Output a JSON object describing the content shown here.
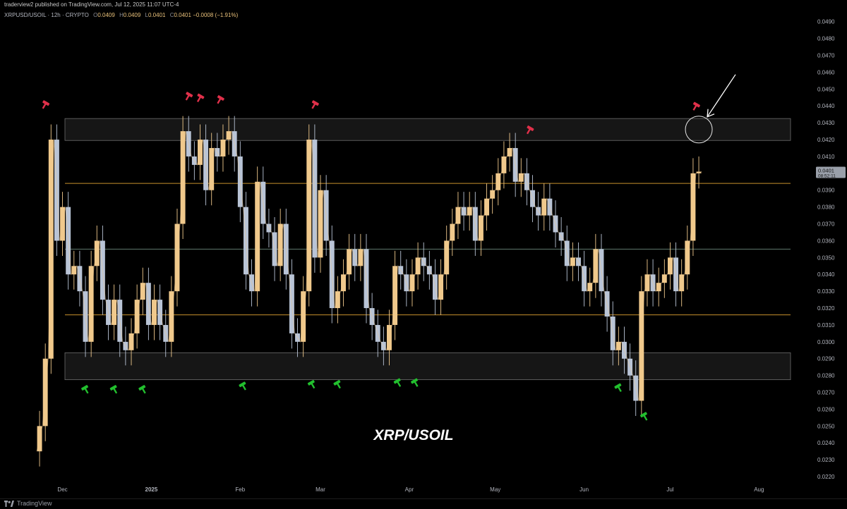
{
  "header": {
    "publisher": "traderview2 published on TradingView.com, Jul 12, 2025 11:07 UTC-4",
    "symbol": "XRPUSD/USOIL · 12h · CRYPTO",
    "ohlc": [
      {
        "k": "O",
        "v": "0.0409"
      },
      {
        "k": "H",
        "v": "0.0409"
      },
      {
        "k": "L",
        "v": "0.0401"
      },
      {
        "k": "C",
        "v": "0.0401"
      }
    ],
    "change": "−0.0008 (−1.91%)"
  },
  "footer": {
    "brand": "TradingView"
  },
  "colors": {
    "background": "#000000",
    "candle_up": "#f0c98c",
    "candle_down": "#b9c4d6",
    "level_line": "#c7902c",
    "mid_line": "#5f7a6e",
    "zone_fill": "#161616",
    "zone_border": "#6c6c6c",
    "sell_marker": "#e0304a",
    "buy_marker": "#22c02e",
    "price_tag": "#9aa0aa"
  },
  "chart_data": {
    "type": "line",
    "title": "XRP/USOIL",
    "xlabel": "",
    "ylabel": "",
    "x_ticks": [
      "Dec",
      "2025",
      "Feb",
      "Mar",
      "Apr",
      "May",
      "Jun",
      "Jul",
      "Aug"
    ],
    "y_ticks": [
      "0.0490",
      "0.0480",
      "0.0470",
      "0.0460",
      "0.0450",
      "0.0440",
      "0.0430",
      "0.0420",
      "0.0410",
      "0.0400",
      "0.0390",
      "0.0380",
      "0.0370",
      "0.0360",
      "0.0350",
      "0.0340",
      "0.0330",
      "0.0320",
      "0.0310",
      "0.0300",
      "0.0290",
      "0.0280",
      "0.0270",
      "0.0260",
      "0.0250",
      "0.0240",
      "0.0230",
      "0.0220"
    ],
    "ylim": [
      0.0215,
      0.0497
    ],
    "xlim": [
      "2024-11-22",
      "2025-08-12"
    ],
    "grid": false,
    "last_price": {
      "value": "0.0401",
      "countdown": "08:52:11"
    },
    "series": [
      {
        "x": [
          "2024-11-22",
          "2024-11-24",
          "2024-11-26",
          "2024-11-28",
          "2024-11-30",
          "2024-12-02",
          "2024-12-04",
          "2024-12-06",
          "2024-12-08",
          "2024-12-10",
          "2024-12-12",
          "2024-12-14",
          "2024-12-16",
          "2024-12-18",
          "2024-12-20",
          "2024-12-22",
          "2024-12-24",
          "2024-12-26",
          "2024-12-28",
          "2024-12-30",
          "2025-01-01",
          "2025-01-03",
          "2025-01-05",
          "2025-01-07",
          "2025-01-09",
          "2025-01-11",
          "2025-01-13",
          "2025-01-15",
          "2025-01-17",
          "2025-01-19",
          "2025-01-21",
          "2025-01-23",
          "2025-01-25",
          "2025-01-27",
          "2025-01-29",
          "2025-01-31",
          "2025-02-02",
          "2025-02-04",
          "2025-02-06",
          "2025-02-08",
          "2025-02-10",
          "2025-02-12",
          "2025-02-14",
          "2025-02-16",
          "2025-02-18",
          "2025-02-20",
          "2025-02-22",
          "2025-02-24",
          "2025-02-26",
          "2025-02-28",
          "2025-03-02",
          "2025-03-04",
          "2025-03-06",
          "2025-03-08",
          "2025-03-10",
          "2025-03-12",
          "2025-03-14",
          "2025-03-16",
          "2025-03-18",
          "2025-03-20",
          "2025-03-22",
          "2025-03-24",
          "2025-03-26",
          "2025-03-28",
          "2025-03-30",
          "2025-04-01",
          "2025-04-03",
          "2025-04-05",
          "2025-04-07",
          "2025-04-09",
          "2025-04-11",
          "2025-04-13",
          "2025-04-15",
          "2025-04-17",
          "2025-04-19",
          "2025-04-21",
          "2025-04-23",
          "2025-04-25",
          "2025-04-27",
          "2025-04-29",
          "2025-05-01",
          "2025-05-03",
          "2025-05-05",
          "2025-05-07",
          "2025-05-09",
          "2025-05-11",
          "2025-05-13",
          "2025-05-15",
          "2025-05-17",
          "2025-05-19",
          "2025-05-21",
          "2025-05-23",
          "2025-05-25",
          "2025-05-27",
          "2025-05-29",
          "2025-05-31",
          "2025-06-02",
          "2025-06-04",
          "2025-06-06",
          "2025-06-08",
          "2025-06-10",
          "2025-06-12",
          "2025-06-14",
          "2025-06-16",
          "2025-06-18",
          "2025-06-20",
          "2025-06-22",
          "2025-06-24",
          "2025-06-26",
          "2025-06-28",
          "2025-06-30",
          "2025-07-02",
          "2025-07-04",
          "2025-07-06",
          "2025-07-08",
          "2025-07-10",
          "2025-07-12"
        ],
        "y": [
          0.0235,
          0.025,
          0.029,
          0.042,
          0.036,
          0.038,
          0.034,
          0.0345,
          0.033,
          0.03,
          0.0345,
          0.036,
          0.0325,
          0.031,
          0.0325,
          0.03,
          0.0295,
          0.0305,
          0.0325,
          0.0335,
          0.031,
          0.0325,
          0.031,
          0.03,
          0.033,
          0.037,
          0.0425,
          0.041,
          0.0405,
          0.042,
          0.039,
          0.0415,
          0.041,
          0.042,
          0.0425,
          0.041,
          0.038,
          0.034,
          0.033,
          0.0395,
          0.037,
          0.0365,
          0.0345,
          0.037,
          0.034,
          0.0305,
          0.03,
          0.033,
          0.042,
          0.035,
          0.039,
          0.036,
          0.032,
          0.033,
          0.034,
          0.0355,
          0.0345,
          0.0355,
          0.032,
          0.031,
          0.03,
          0.0295,
          0.031,
          0.0345,
          0.034,
          0.033,
          0.034,
          0.035,
          0.0345,
          0.034,
          0.0325,
          0.034,
          0.036,
          0.037,
          0.038,
          0.0375,
          0.038,
          0.036,
          0.0375,
          0.0385,
          0.039,
          0.04,
          0.041,
          0.0415,
          0.0395,
          0.04,
          0.039,
          0.038,
          0.0375,
          0.0385,
          0.0375,
          0.0365,
          0.036,
          0.0345,
          0.035,
          0.0345,
          0.033,
          0.0335,
          0.0355,
          0.033,
          0.0315,
          0.0295,
          0.03,
          0.029,
          0.028,
          0.0265,
          0.033,
          0.034,
          0.033,
          0.0335,
          0.034,
          0.035,
          0.033,
          0.034,
          0.036,
          0.04,
          0.0401
        ]
      }
    ],
    "levels": [
      {
        "value": 0.0394,
        "style": "level"
      },
      {
        "value": 0.0355,
        "style": "mid"
      },
      {
        "value": 0.0316,
        "style": "level"
      }
    ],
    "zones": [
      {
        "from": 0.04195,
        "to": 0.04325
      },
      {
        "from": 0.02775,
        "to": 0.02935
      }
    ],
    "markers": [
      {
        "type": "sell",
        "x": "2024-11-25",
        "y": 0.0441
      },
      {
        "type": "sell",
        "x": "2025-01-14",
        "y": 0.0446
      },
      {
        "type": "sell",
        "x": "2025-01-18",
        "y": 0.0445
      },
      {
        "type": "sell",
        "x": "2025-01-25",
        "y": 0.0444
      },
      {
        "type": "sell",
        "x": "2025-02-27",
        "y": 0.0441
      },
      {
        "type": "sell",
        "x": "2025-05-13",
        "y": 0.0426
      },
      {
        "type": "sell",
        "x": "2025-07-10",
        "y": 0.044
      },
      {
        "type": "buy",
        "x": "2024-12-09",
        "y": 0.0272
      },
      {
        "type": "buy",
        "x": "2024-12-19",
        "y": 0.0272
      },
      {
        "type": "buy",
        "x": "2024-12-29",
        "y": 0.0272
      },
      {
        "type": "buy",
        "x": "2025-02-02",
        "y": 0.0274
      },
      {
        "type": "buy",
        "x": "2025-02-26",
        "y": 0.0275
      },
      {
        "type": "buy",
        "x": "2025-03-07",
        "y": 0.0275
      },
      {
        "type": "buy",
        "x": "2025-03-28",
        "y": 0.0276
      },
      {
        "type": "buy",
        "x": "2025-04-03",
        "y": 0.0276
      },
      {
        "type": "buy",
        "x": "2025-06-13",
        "y": 0.0273
      },
      {
        "type": "buy",
        "x": "2025-06-22",
        "y": 0.0256
      }
    ],
    "highlight": {
      "x": "2025-07-11",
      "y": 0.0426
    }
  }
}
